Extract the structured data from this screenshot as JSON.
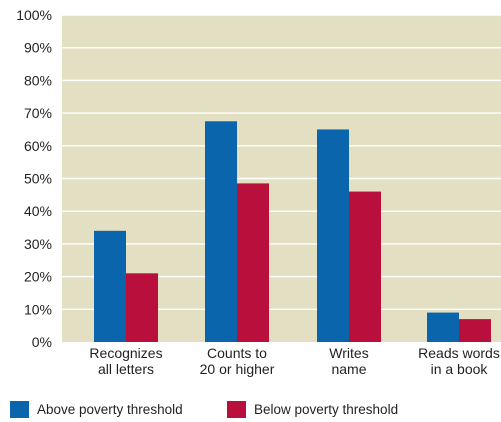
{
  "chart_data": {
    "type": "bar",
    "categories": [
      [
        "Recognizes",
        "all letters"
      ],
      [
        "Counts to",
        "20 or higher"
      ],
      [
        "Writes",
        "name"
      ],
      [
        "Reads words",
        "in a book"
      ]
    ],
    "series": [
      {
        "name": "Above poverty threshold",
        "color": "#0b65ac",
        "values": [
          34,
          67.5,
          65,
          9
        ]
      },
      {
        "name": "Below poverty threshold",
        "color": "#b90f3c",
        "values": [
          21,
          48.5,
          46,
          7
        ]
      }
    ],
    "ylim": [
      0,
      100
    ],
    "yticks": [
      "0%",
      "10%",
      "20%",
      "30%",
      "40%",
      "50%",
      "60%",
      "70%",
      "80%",
      "90%",
      "100%"
    ],
    "grid": true,
    "plot_background": "#e2dfc2",
    "grid_color": "#ffffff",
    "legend_position": "bottom"
  }
}
